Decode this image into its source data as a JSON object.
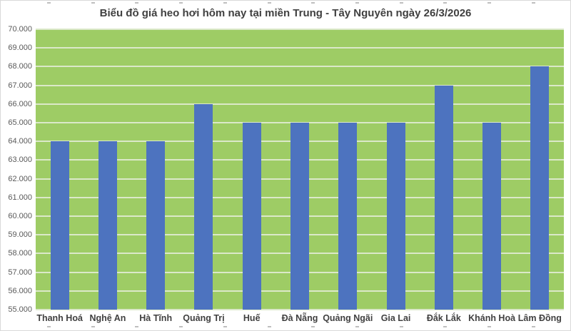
{
  "chart": {
    "title": "Biểu đồ giá heo hơi hôm nay tại miền Trung - Tây Nguyên ngày 26/3/2026"
  },
  "chart_data": {
    "type": "bar",
    "title": "Biểu đồ giá heo hơi hôm nay tại miền Trung - Tây Nguyên ngày 26/3/2026",
    "categories": [
      "Thanh Hoá",
      "Nghệ An",
      "Hà Tĩnh",
      "Quảng Trị",
      "Huế",
      "Đà Nẵng",
      "Quảng Ngãi",
      "Gia Lai",
      "Đắk Lắk",
      "Khánh Hoà",
      "Lâm Đồng"
    ],
    "values": [
      64000,
      64000,
      64000,
      66000,
      65000,
      65000,
      65000,
      65000,
      67000,
      65000,
      68000
    ],
    "y_tick_labels": [
      "70.000",
      "69.000",
      "68.000",
      "67.000",
      "66.000",
      "65.000",
      "64.000",
      "63.000",
      "62.000",
      "61.000",
      "60.000",
      "59.000",
      "58.000",
      "57.000",
      "56.000",
      "55.000"
    ],
    "ylim": [
      55000,
      70000
    ],
    "y_step": 1000,
    "xlabel": "",
    "ylabel": "",
    "grid": true,
    "legend": false,
    "colors": {
      "bar": "#4d73bf",
      "plot_bg": "#9ecc65",
      "gridline": "#dbe8c9",
      "title_text": "#404040",
      "axis_text": "#595959",
      "category_text": "#404040",
      "chart_border": "#d9d9d9",
      "edge_tick": "#bfbfbf"
    }
  }
}
